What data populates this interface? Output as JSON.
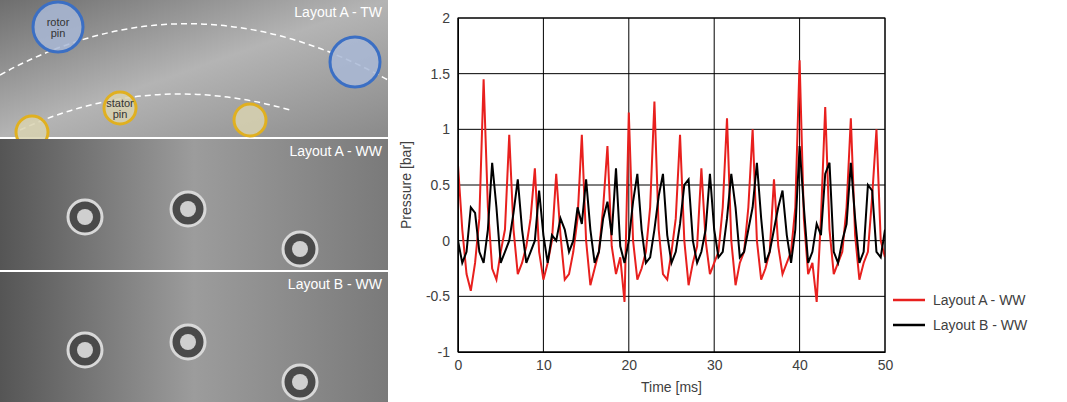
{
  "images": [
    {
      "label": "Layout A - TW",
      "annotations": [
        "rotor pin",
        "stator pin"
      ]
    },
    {
      "label": "Layout A - WW"
    },
    {
      "label": "Layout B - WW"
    }
  ],
  "chart_data": {
    "type": "line",
    "x_label": "Time [ms]",
    "y_label": "Pressure [bar]",
    "xlim": [
      0,
      50
    ],
    "xticks": [
      0,
      10,
      20,
      30,
      40,
      50
    ],
    "ylim": [
      -1,
      2
    ],
    "yticks": [
      -1,
      -0.5,
      0,
      0.5,
      1,
      1.5,
      2
    ],
    "grid": true,
    "legend": "right",
    "x": [
      0,
      0.5,
      1,
      1.5,
      2,
      2.5,
      3,
      3.5,
      4,
      4.5,
      5,
      5.5,
      6,
      6.5,
      7,
      7.5,
      8,
      8.5,
      9,
      9.5,
      10,
      10.5,
      11,
      11.5,
      12,
      12.5,
      13,
      13.5,
      14,
      14.5,
      15,
      15.5,
      16,
      16.5,
      17,
      17.5,
      18,
      18.5,
      19,
      19.5,
      20,
      20.5,
      21,
      21.5,
      22,
      22.5,
      23,
      23.5,
      24,
      24.5,
      25,
      25.5,
      26,
      26.5,
      27,
      27.5,
      28,
      28.5,
      29,
      29.5,
      30,
      30.5,
      31,
      31.5,
      32,
      32.5,
      33,
      33.5,
      34,
      34.5,
      35,
      35.5,
      36,
      36.5,
      37,
      37.5,
      38,
      38.5,
      39,
      39.5,
      40,
      40.5,
      41,
      41.5,
      42,
      42.5,
      43,
      43.5,
      44,
      44.5,
      45,
      45.5,
      46,
      46.5,
      47,
      47.5,
      48,
      48.5,
      49,
      49.5,
      50
    ],
    "series": [
      {
        "name": "Layout A - WW",
        "color": "#e8201e",
        "line_style": "solid",
        "values": [
          0.68,
          0.1,
          -0.3,
          -0.45,
          -0.2,
          0.2,
          1.45,
          0.3,
          -0.25,
          -0.35,
          -0.1,
          0.1,
          0.95,
          0.1,
          -0.3,
          -0.2,
          -0.05,
          0.2,
          0.65,
          -0.1,
          -0.35,
          -0.2,
          0.0,
          0.6,
          0.05,
          -0.35,
          -0.3,
          -0.1,
          0.2,
          0.95,
          0.0,
          -0.4,
          -0.25,
          -0.1,
          0.3,
          0.85,
          -0.05,
          -0.3,
          -0.15,
          -0.55,
          1.15,
          0.0,
          -0.35,
          -0.25,
          -0.1,
          0.3,
          1.25,
          0.1,
          -0.3,
          -0.35,
          -0.1,
          0.2,
          0.95,
          0.0,
          -0.4,
          -0.2,
          -0.05,
          0.65,
          0.0,
          -0.3,
          -0.2,
          -0.1,
          0.3,
          1.1,
          0.0,
          -0.4,
          -0.2,
          -0.1,
          0.3,
          1.0,
          0.0,
          -0.35,
          -0.25,
          -0.1,
          0.55,
          -0.05,
          -0.3,
          -0.2,
          -0.1,
          0.3,
          1.62,
          0.2,
          -0.3,
          -0.2,
          -0.55,
          0.2,
          1.2,
          0.1,
          -0.3,
          -0.2,
          -0.1,
          0.3,
          1.1,
          0.05,
          -0.35,
          -0.2,
          -0.1,
          0.4,
          1.0,
          0.0,
          -0.15
        ]
      },
      {
        "name": "Layout B - WW",
        "color": "#000000",
        "line_style": "solid",
        "values": [
          0.0,
          -0.2,
          -0.1,
          0.3,
          0.25,
          -0.1,
          -0.2,
          0.1,
          0.7,
          0.3,
          -0.2,
          -0.1,
          0.0,
          0.25,
          0.55,
          0.1,
          -0.2,
          -0.1,
          0.0,
          0.45,
          0.05,
          -0.2,
          0.05,
          0.0,
          0.2,
          0.1,
          -0.1,
          0.0,
          0.3,
          0.15,
          0.55,
          0.1,
          -0.2,
          -0.1,
          0.2,
          0.35,
          0.05,
          0.65,
          -0.05,
          -0.2,
          0.0,
          0.35,
          0.6,
          0.1,
          -0.2,
          -0.15,
          0.1,
          0.4,
          0.6,
          0.05,
          -0.2,
          -0.1,
          0.15,
          0.5,
          0.55,
          0.0,
          -0.2,
          -0.1,
          0.1,
          0.6,
          0.1,
          -0.15,
          -0.1,
          0.2,
          0.6,
          0.3,
          -0.15,
          -0.1,
          0.1,
          0.3,
          0.7,
          0.2,
          -0.2,
          -0.1,
          0.1,
          0.3,
          0.45,
          0.05,
          -0.2,
          0.1,
          0.85,
          0.3,
          -0.2,
          -0.1,
          0.15,
          0.05,
          0.6,
          0.7,
          -0.1,
          -0.2,
          0.0,
          0.15,
          0.7,
          0.2,
          -0.2,
          -0.1,
          0.5,
          0.45,
          -0.1,
          -0.15,
          0.1
        ]
      }
    ]
  }
}
